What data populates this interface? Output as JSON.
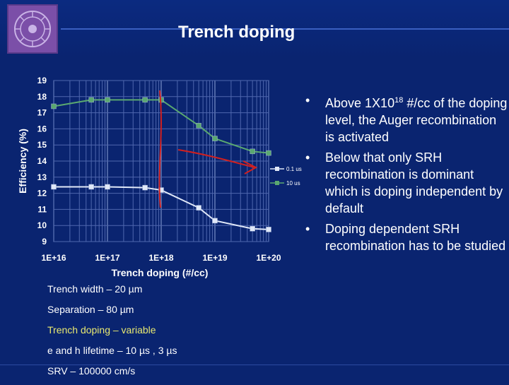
{
  "slide": {
    "title": "Trench doping",
    "logo_icon": "institute-seal-icon"
  },
  "bullets": [
    {
      "before": "Above 1X10",
      "sup": "18",
      "after": " #/cc of the doping level, the Auger recombination is activated"
    },
    {
      "text": "Below that only SRH recombination is dominant which is doping independent by default"
    },
    {
      "text": "Doping dependent SRH recombination has to be studied"
    }
  ],
  "params": [
    "Trench width – 20 µm",
    "Separation – 80 µm",
    "Trench doping – variable",
    "e and h lifetime – 10 µs , 3 µs",
    "SRV – 100000 cm/s"
  ],
  "chart_data": {
    "type": "line",
    "xlabel": "Trench doping (#/cc)",
    "ylabel": "Efficiency (%)",
    "x_scale": "log",
    "xlim": [
      1e+16,
      1e+20
    ],
    "ylim": [
      9,
      19
    ],
    "x_ticks": [
      "1E+16",
      "1E+17",
      "1E+18",
      "1E+19",
      "1E+20"
    ],
    "y_ticks": [
      "9",
      "10",
      "11",
      "12",
      "13",
      "14",
      "15",
      "16",
      "17",
      "18",
      "19"
    ],
    "grid": true,
    "legend_position": "right",
    "series": [
      {
        "name": "0.1 us",
        "color": "#e0e8f8",
        "x": [
          1e+16,
          5e+16,
          1e+17,
          5e+17,
          1e+18,
          5e+18,
          1e+19,
          5e+19,
          1e+20
        ],
        "y": [
          12.4,
          12.4,
          12.4,
          12.35,
          12.2,
          11.1,
          10.3,
          9.8,
          9.75
        ]
      },
      {
        "name": "10 us",
        "color": "#5aa870",
        "x": [
          1e+16,
          5e+16,
          1e+17,
          5e+17,
          1e+18,
          5e+18,
          1e+19,
          5e+19,
          1e+20
        ],
        "y": [
          17.4,
          17.8,
          17.8,
          17.8,
          17.8,
          16.2,
          15.4,
          14.6,
          14.5
        ]
      }
    ],
    "annotations": {
      "vertical_marker_x": 1e+18,
      "marker_color": "#d02020"
    }
  }
}
